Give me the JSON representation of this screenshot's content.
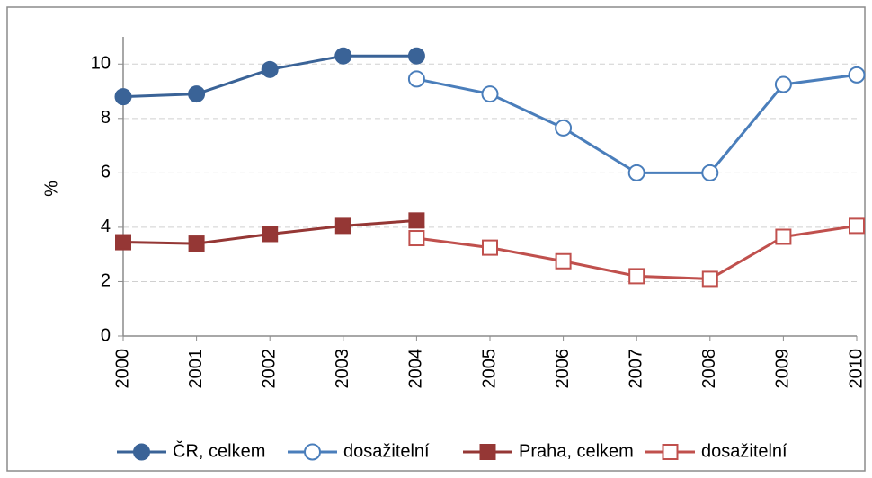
{
  "chart_data": {
    "type": "line",
    "y_label": "%",
    "categories": [
      "2000",
      "2001",
      "2002",
      "2003",
      "2004",
      "2005",
      "2006",
      "2007",
      "2008",
      "2009",
      "2010"
    ],
    "series": [
      {
        "name": "ČR, celkem",
        "color": "#3a6397",
        "marker": "circle",
        "filled": true,
        "values": [
          8.8,
          8.9,
          9.8,
          10.3,
          10.3,
          null,
          null,
          null,
          null,
          null,
          null
        ]
      },
      {
        "name": "dosažitelní",
        "color": "#4a7ebb",
        "marker": "circle",
        "filled": false,
        "values": [
          null,
          null,
          null,
          null,
          9.45,
          8.9,
          7.65,
          6.0,
          6.0,
          9.25,
          9.6
        ]
      },
      {
        "name": "Praha, celkem",
        "color": "#953735",
        "marker": "square",
        "filled": true,
        "values": [
          3.45,
          3.4,
          3.75,
          4.05,
          4.25,
          null,
          null,
          null,
          null,
          null,
          null
        ]
      },
      {
        "name": "dosažitelní",
        "color": "#c0504d",
        "marker": "square",
        "filled": false,
        "values": [
          null,
          null,
          null,
          null,
          3.6,
          3.25,
          2.75,
          2.2,
          2.1,
          3.65,
          4.05
        ]
      }
    ],
    "ylim": [
      0,
      11
    ],
    "yticks": [
      0,
      2,
      4,
      6,
      8,
      10
    ],
    "grid": true,
    "legend": "bottom"
  }
}
